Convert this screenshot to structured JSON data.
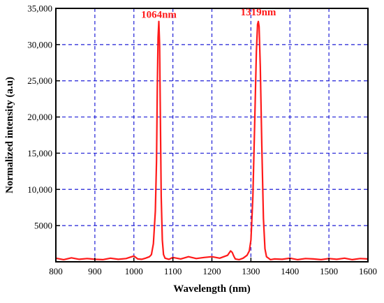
{
  "chart_data": {
    "type": "line",
    "xlabel": "Wavelength (nm)",
    "ylabel": "Normalized intensity (a.u)",
    "xlim": [
      800,
      1600
    ],
    "ylim": [
      0,
      35000
    ],
    "x_ticks": [
      800,
      900,
      1000,
      1100,
      1200,
      1300,
      1400,
      1500,
      1600
    ],
    "x_tick_labels": [
      "800",
      "900",
      "1000",
      "1100",
      "1200",
      "1300",
      "1400",
      "1500",
      "1600"
    ],
    "y_ticks": [
      5000,
      10000,
      15000,
      20000,
      25000,
      30000,
      35000
    ],
    "y_tick_labels": [
      "5000",
      "10,000",
      "15,000",
      "20,000",
      "25,000",
      "30,000",
      "35,000"
    ],
    "grid": true,
    "line_color": "#ff1a1a",
    "grid_color": "#1f1fd6",
    "annotations": [
      {
        "text": "1064nm",
        "x": 1064,
        "y": 34200
      },
      {
        "text": "1319nm",
        "x": 1319,
        "y": 34500
      }
    ],
    "series": [
      {
        "x": [
          800,
          820,
          840,
          860,
          880,
          900,
          920,
          940,
          960,
          980,
          1000,
          1010,
          1020,
          1030,
          1040,
          1045,
          1050,
          1055,
          1058,
          1060,
          1062,
          1064,
          1066,
          1068,
          1070,
          1073,
          1076,
          1080,
          1090,
          1100,
          1120,
          1140,
          1160,
          1180,
          1200,
          1220,
          1240,
          1248,
          1252,
          1256,
          1260,
          1270,
          1280,
          1290,
          1296,
          1300,
          1305,
          1310,
          1314,
          1317,
          1319,
          1321,
          1324,
          1328,
          1332,
          1336,
          1340,
          1345,
          1350,
          1360,
          1380,
          1400,
          1420,
          1440,
          1460,
          1480,
          1500,
          1520,
          1540,
          1560,
          1580,
          1600
        ],
        "values": [
          500,
          300,
          550,
          350,
          450,
          350,
          300,
          500,
          350,
          450,
          800,
          400,
          350,
          500,
          700,
          1000,
          2500,
          7000,
          14000,
          24000,
          31000,
          33200,
          30000,
          20000,
          9000,
          3000,
          1000,
          500,
          350,
          600,
          400,
          700,
          450,
          600,
          700,
          500,
          900,
          1500,
          1300,
          800,
          400,
          300,
          500,
          900,
          1500,
          3000,
          9000,
          20000,
          29000,
          32800,
          33200,
          32500,
          27000,
          16000,
          6000,
          1800,
          700,
          500,
          300,
          400,
          350,
          500,
          300,
          450,
          400,
          300,
          450,
          350,
          500,
          300,
          450,
          400
        ]
      }
    ]
  }
}
